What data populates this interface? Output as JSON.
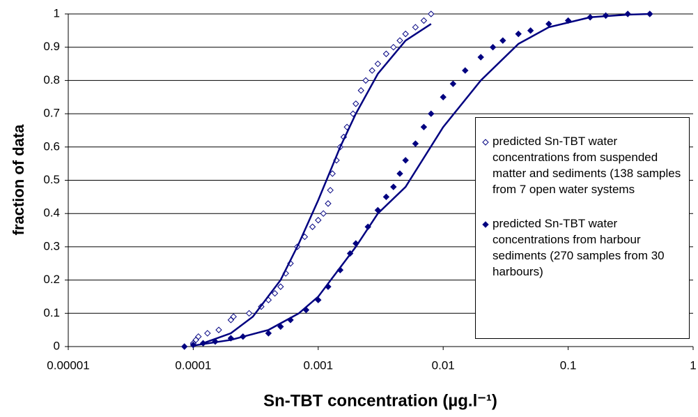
{
  "chart_data": {
    "type": "scatter",
    "ylabel": "fraction of data",
    "xlabel": "Sn-TBT concentration (µg.l⁻¹)",
    "xscale": "log",
    "xlim": [
      1e-05,
      1
    ],
    "xticks": [
      1e-05,
      0.0001,
      0.001,
      0.01,
      0.1,
      1
    ],
    "ylim": [
      0,
      1
    ],
    "yticks": [
      0,
      0.1,
      0.2,
      0.3,
      0.4,
      0.5,
      0.6,
      0.7,
      0.8,
      0.9,
      1
    ],
    "grid": true,
    "series": [
      {
        "name": "predicted Sn-TBT water concentrations from suspended matter and sediments (138 samples from 7 open water systems",
        "color": "#000080",
        "marker": "open-diamond",
        "x": [
          0.0001,
          0.000105,
          0.00011,
          0.00013,
          0.00016,
          0.0002,
          0.00021,
          0.00028,
          0.00035,
          0.0004,
          0.00045,
          0.0005,
          0.00055,
          0.0006,
          0.00068,
          0.00078,
          0.0009,
          0.001,
          0.0011,
          0.0012,
          0.00125,
          0.0013,
          0.0014,
          0.0015,
          0.0016,
          0.0017,
          0.0019,
          0.002,
          0.0022,
          0.0024,
          0.0027,
          0.003,
          0.0035,
          0.004,
          0.0045,
          0.005,
          0.006,
          0.007,
          0.008
        ],
        "values": [
          0.01,
          0.02,
          0.03,
          0.04,
          0.05,
          0.08,
          0.09,
          0.1,
          0.12,
          0.14,
          0.16,
          0.18,
          0.22,
          0.25,
          0.3,
          0.33,
          0.36,
          0.38,
          0.4,
          0.43,
          0.47,
          0.52,
          0.56,
          0.6,
          0.63,
          0.66,
          0.7,
          0.73,
          0.77,
          0.8,
          0.83,
          0.85,
          0.88,
          0.9,
          0.92,
          0.94,
          0.96,
          0.98,
          1.0
        ]
      },
      {
        "name": "predicted Sn-TBT water concentrations from harbour sediments (270 samples from 30 harbours)",
        "color": "#000080",
        "marker": "filled-diamond",
        "x": [
          8.5e-05,
          0.0001,
          0.00012,
          0.00015,
          0.0002,
          0.00025,
          0.0004,
          0.0005,
          0.0006,
          0.0008,
          0.001,
          0.0012,
          0.0015,
          0.0018,
          0.002,
          0.0025,
          0.003,
          0.0035,
          0.004,
          0.0045,
          0.005,
          0.006,
          0.007,
          0.008,
          0.01,
          0.012,
          0.015,
          0.02,
          0.025,
          0.03,
          0.04,
          0.05,
          0.07,
          0.1,
          0.15,
          0.2,
          0.3,
          0.45
        ],
        "values": [
          0,
          0.005,
          0.01,
          0.015,
          0.025,
          0.03,
          0.04,
          0.06,
          0.08,
          0.11,
          0.14,
          0.18,
          0.23,
          0.28,
          0.31,
          0.36,
          0.41,
          0.45,
          0.48,
          0.52,
          0.56,
          0.61,
          0.66,
          0.7,
          0.75,
          0.79,
          0.83,
          0.87,
          0.9,
          0.92,
          0.94,
          0.95,
          0.97,
          0.98,
          0.99,
          0.995,
          1.0,
          1.0
        ]
      },
      {
        "color": "#000080",
        "marker": "line",
        "x": [
          0.00012,
          0.0002,
          0.0003,
          0.0005,
          0.0007,
          0.001,
          0.0015,
          0.002,
          0.003,
          0.005,
          0.008
        ],
        "values": [
          0.01,
          0.04,
          0.09,
          0.2,
          0.31,
          0.44,
          0.6,
          0.7,
          0.82,
          0.92,
          0.97
        ]
      },
      {
        "color": "#000080",
        "marker": "line",
        "x": [
          0.0001,
          0.0002,
          0.0004,
          0.0007,
          0.001,
          0.002,
          0.003,
          0.005,
          0.01,
          0.02,
          0.04,
          0.07,
          0.15,
          0.3,
          0.45
        ],
        "values": [
          0.003,
          0.02,
          0.05,
          0.1,
          0.15,
          0.3,
          0.4,
          0.48,
          0.66,
          0.8,
          0.91,
          0.96,
          0.99,
          0.998,
          1.0
        ]
      }
    ]
  }
}
